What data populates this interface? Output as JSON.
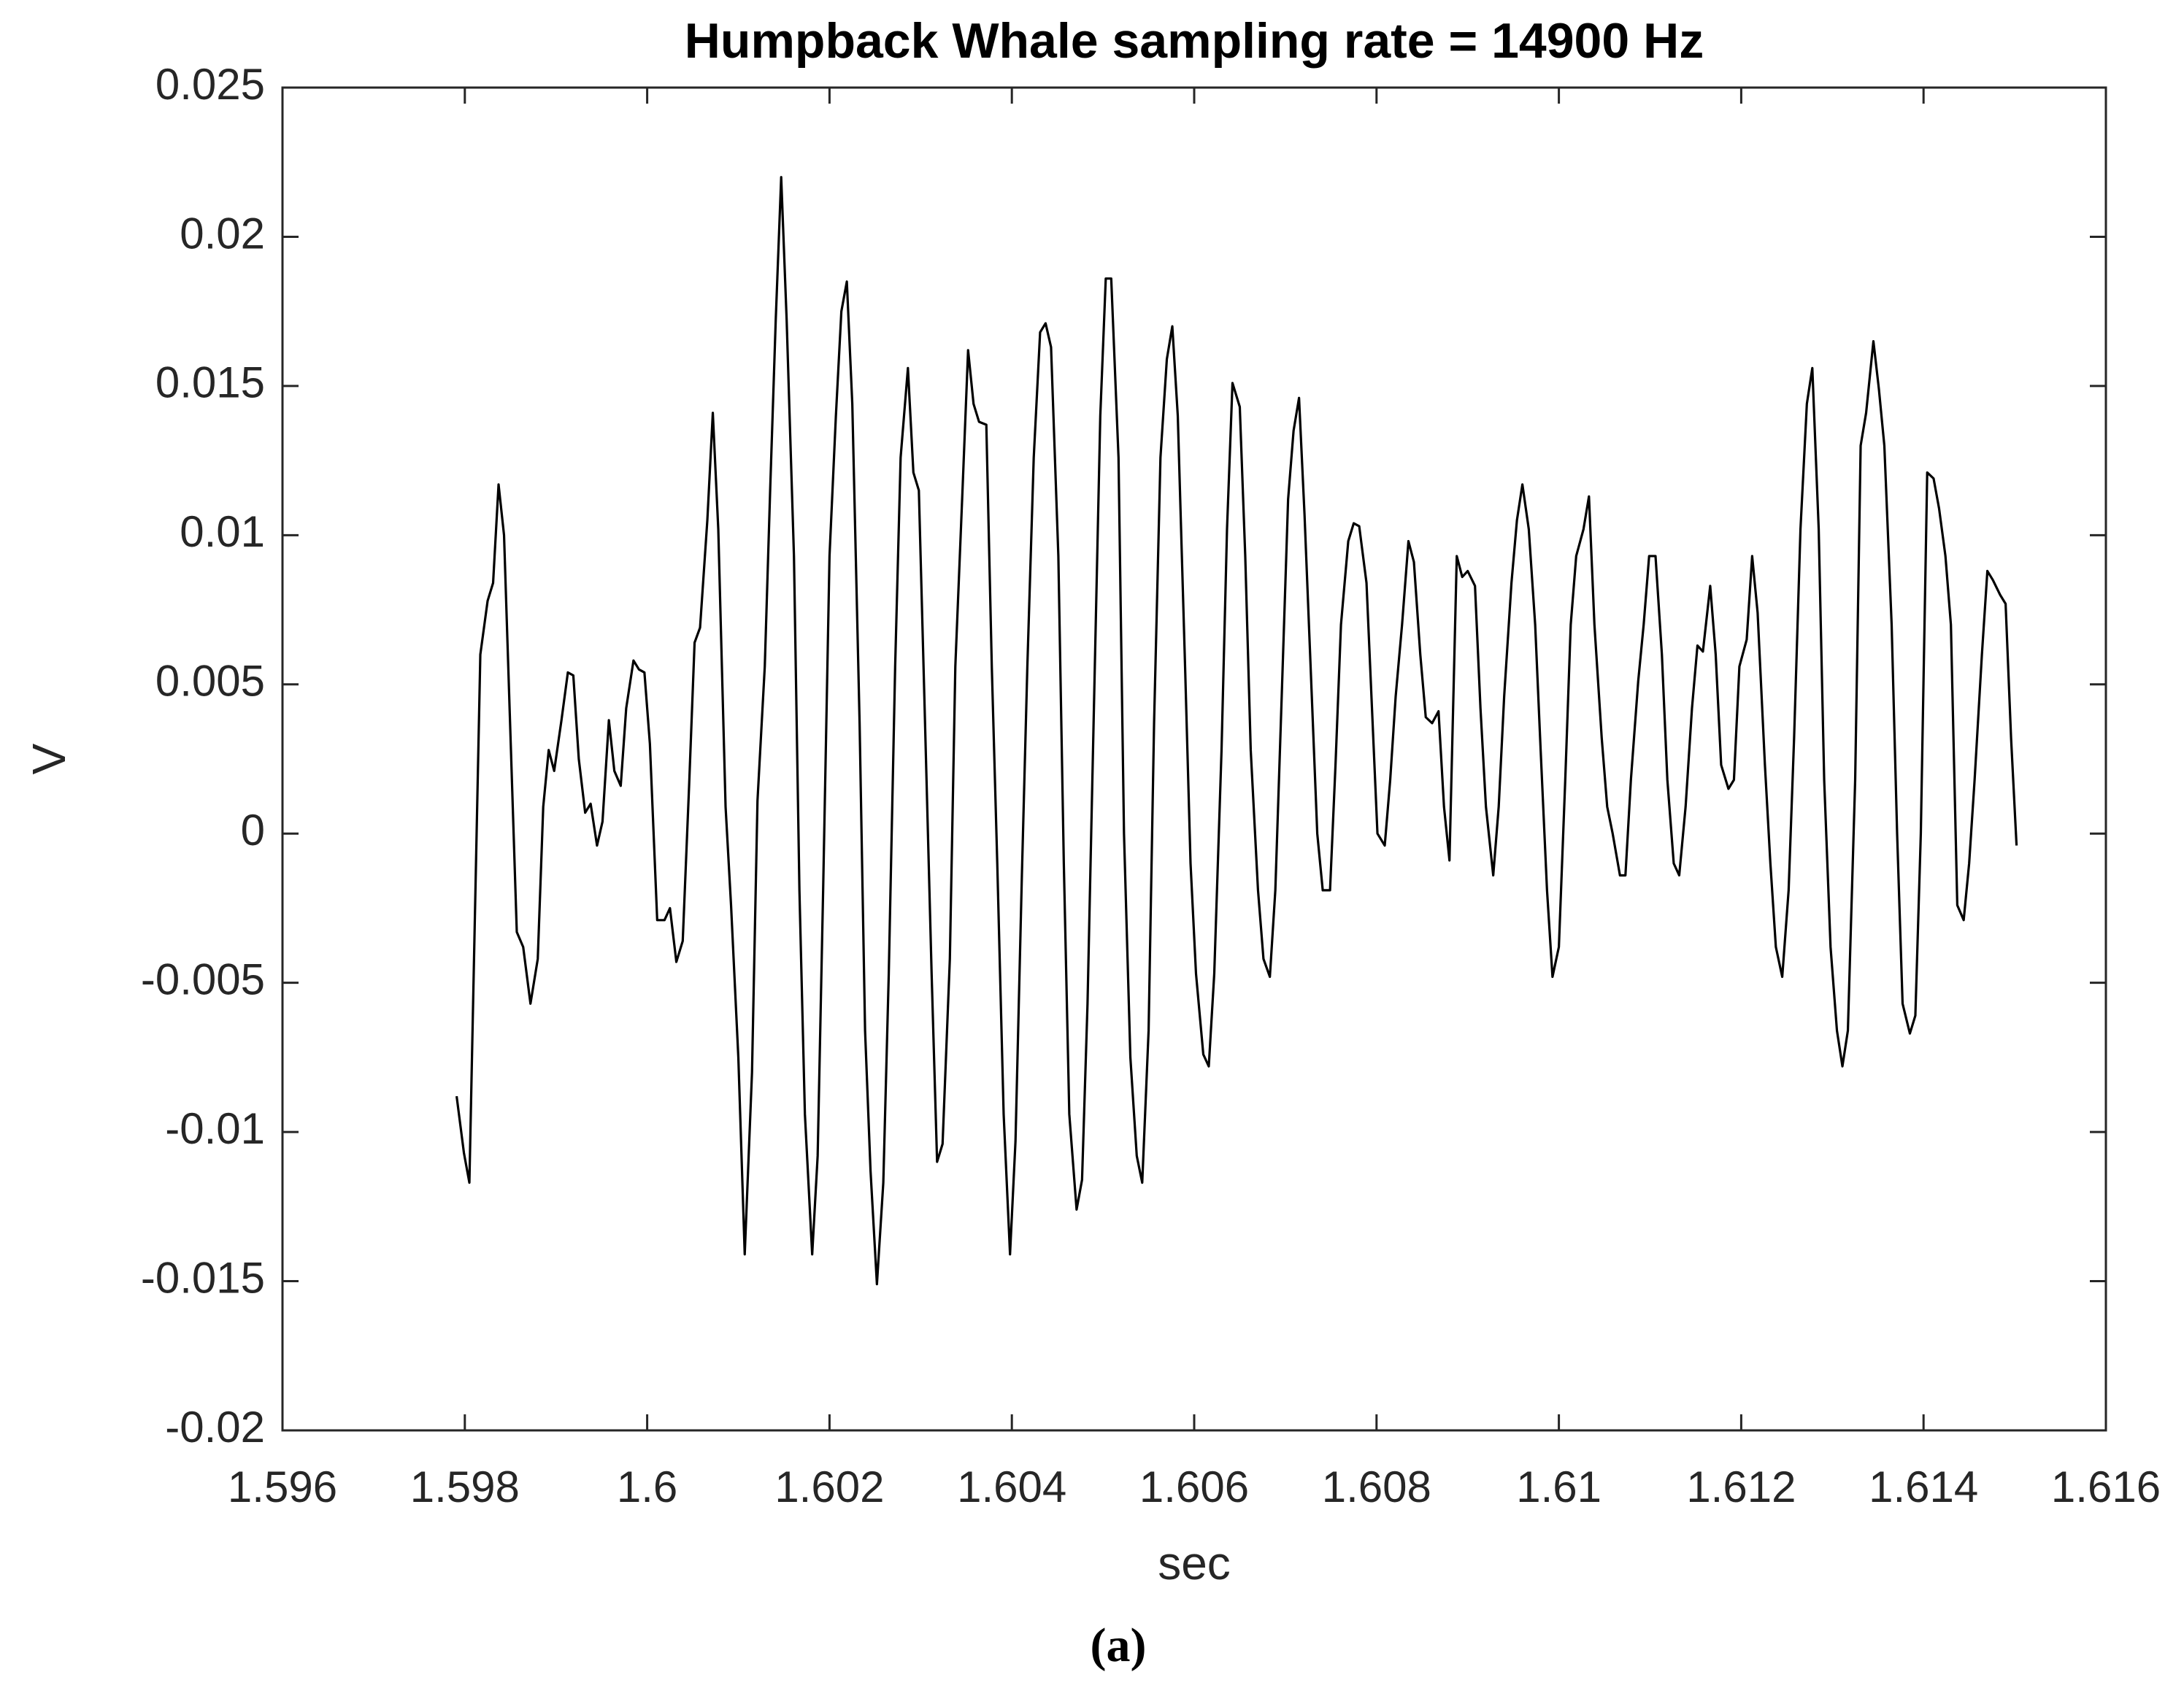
{
  "chart_data": {
    "type": "line",
    "title": "Humpback Whale sampling rate = 14900 Hz",
    "x_label": "sec",
    "y_label": "V",
    "caption": "(a)",
    "xlim": [
      1.596,
      1.616
    ],
    "xticks": [
      1.596,
      1.598,
      1.6,
      1.602,
      1.604,
      1.606,
      1.608,
      1.61,
      1.612,
      1.614,
      1.616
    ],
    "ylim": [
      -0.02,
      0.025
    ],
    "yticks": [
      -0.02,
      -0.015,
      -0.01,
      -0.005,
      0,
      0.005,
      0.01,
      0.015,
      0.02,
      0.025
    ],
    "grid": false,
    "series": [
      {
        "color": "#000000",
        "x": [
          1.59791,
          1.59799,
          1.59805,
          1.59817,
          1.59825,
          1.59831,
          1.59837,
          1.59843,
          1.59857,
          1.59864,
          1.59872,
          1.5988,
          1.59886,
          1.59892,
          1.59898,
          1.59906,
          1.59913,
          1.59919,
          1.59925,
          1.59932,
          1.59938,
          1.59945,
          1.59951,
          1.59958,
          1.59964,
          1.59971,
          1.59977,
          1.59985,
          1.59991,
          1.59997,
          1.60003,
          1.60011,
          1.60019,
          1.60025,
          1.60032,
          1.60039,
          1.60046,
          1.60052,
          1.60058,
          1.60066,
          1.60072,
          1.60078,
          1.60086,
          1.60092,
          1.601,
          1.60107,
          1.60115,
          1.60121,
          1.60129,
          1.60135,
          1.60141,
          1.60147,
          1.60153,
          1.60161,
          1.60167,
          1.60173,
          1.60181,
          1.60187,
          1.60193,
          1.602,
          1.60207,
          1.60213,
          1.60219,
          1.60225,
          1.60233,
          1.60239,
          1.60245,
          1.60252,
          1.60259,
          1.60265,
          1.60272,
          1.60278,
          1.60286,
          1.60292,
          1.60298,
          1.60304,
          1.60312,
          1.60318,
          1.60324,
          1.60332,
          1.60338,
          1.60346,
          1.60352,
          1.60358,
          1.60364,
          1.60372,
          1.60378,
          1.60384,
          1.60391,
          1.60398,
          1.60404,
          1.60411,
          1.60417,
          1.60424,
          1.60431,
          1.60437,
          1.60443,
          1.60451,
          1.60457,
          1.60463,
          1.60471,
          1.60477,
          1.60483,
          1.60491,
          1.60497,
          1.60503,
          1.60509,
          1.60517,
          1.60523,
          1.6053,
          1.60537,
          1.60543,
          1.6055,
          1.60556,
          1.60563,
          1.6057,
          1.60576,
          1.60582,
          1.6059,
          1.60596,
          1.60602,
          1.6061,
          1.60616,
          1.60622,
          1.6063,
          1.60636,
          1.60642,
          1.6065,
          1.60656,
          1.60662,
          1.6067,
          1.60676,
          1.60683,
          1.60689,
          1.60696,
          1.60703,
          1.60709,
          1.60715,
          1.60721,
          1.60729,
          1.60735,
          1.60741,
          1.60749,
          1.60755,
          1.60761,
          1.60769,
          1.60775,
          1.60781,
          1.60789,
          1.60795,
          1.60801,
          1.60809,
          1.60815,
          1.60821,
          1.60828,
          1.60835,
          1.60841,
          1.60848,
          1.60854,
          1.60861,
          1.60868,
          1.60874,
          1.6088,
          1.60888,
          1.60894,
          1.609,
          1.60908,
          1.60914,
          1.6092,
          1.60928,
          1.60934,
          1.6094,
          1.60948,
          1.60954,
          1.6096,
          1.60967,
          1.60974,
          1.6098,
          1.60987,
          1.60993,
          1.61,
          1.61007,
          1.61013,
          1.61019,
          1.61027,
          1.61033,
          1.61039,
          1.61047,
          1.61053,
          1.61059,
          1.61067,
          1.61073,
          1.61079,
          1.61087,
          1.61093,
          1.61099,
          1.61106,
          1.61113,
          1.61119,
          1.61126,
          1.61132,
          1.61139,
          1.61146,
          1.61152,
          1.61158,
          1.61166,
          1.61172,
          1.61178,
          1.61186,
          1.61192,
          1.61198,
          1.61206,
          1.61212,
          1.61218,
          1.61226,
          1.61232,
          1.61238,
          1.61245,
          1.61252,
          1.61258,
          1.61265,
          1.61272,
          1.61278,
          1.61285,
          1.61291,
          1.61298,
          1.61305,
          1.61311,
          1.61317,
          1.61325,
          1.61331,
          1.61337,
          1.61345,
          1.61351,
          1.61357,
          1.61365,
          1.61371,
          1.61377,
          1.61385,
          1.61391,
          1.61397,
          1.61404,
          1.61411,
          1.61417,
          1.61424,
          1.6143,
          1.61437,
          1.61444,
          1.6145,
          1.61456,
          1.61464,
          1.6147,
          1.61476,
          1.61484,
          1.6149,
          1.61496,
          1.61502
        ],
        "values": [
          -0.0088,
          -0.0107,
          -0.0117,
          0.006,
          0.0078,
          0.0084,
          0.0117,
          0.01,
          -0.0033,
          -0.0038,
          -0.0057,
          -0.0042,
          0.0009,
          0.0028,
          0.0021,
          0.0038,
          0.0054,
          0.0053,
          0.0025,
          0.0007,
          0.001,
          -0.0004,
          0.0004,
          0.0038,
          0.0021,
          0.0016,
          0.0042,
          0.0058,
          0.0055,
          0.0054,
          0.003,
          -0.0029,
          -0.0029,
          -0.0025,
          -0.0043,
          -0.0036,
          0.0016,
          0.0064,
          0.0069,
          0.0105,
          0.0141,
          0.0102,
          0.0009,
          -0.0024,
          -0.0075,
          -0.0141,
          -0.008,
          0.0011,
          0.0056,
          0.0116,
          0.0172,
          0.022,
          0.0172,
          0.0093,
          -0.0019,
          -0.0094,
          -0.0141,
          -0.0108,
          -0.0019,
          0.0093,
          0.014,
          0.0175,
          0.0185,
          0.0144,
          0.0037,
          -0.0066,
          -0.0113,
          -0.0151,
          -0.0117,
          -0.0047,
          0.0056,
          0.0126,
          0.0156,
          0.0121,
          0.0115,
          0.0046,
          -0.0047,
          -0.011,
          -0.0104,
          -0.0042,
          0.0056,
          0.0116,
          0.0162,
          0.0144,
          0.0138,
          0.0137,
          0.0056,
          -0.001,
          -0.0094,
          -0.0141,
          -0.0103,
          -0.0014,
          0.0056,
          0.0126,
          0.0168,
          0.0171,
          0.0163,
          0.0093,
          -0.001,
          -0.0094,
          -0.0126,
          -0.0116,
          -0.0057,
          0.0056,
          0.014,
          0.0186,
          0.0186,
          0.0126,
          0,
          -0.0075,
          -0.0108,
          -0.0117,
          -0.0066,
          0.0037,
          0.0126,
          0.0159,
          0.017,
          0.014,
          0.0056,
          -0.001,
          -0.0047,
          -0.0074,
          -0.0078,
          -0.0047,
          0.0028,
          0.0102,
          0.0151,
          0.0143,
          0.0093,
          0.0028,
          -0.0019,
          -0.0042,
          -0.0048,
          -0.0019,
          0.0046,
          0.0112,
          0.0135,
          0.0146,
          0.0107,
          0.0046,
          0,
          -0.0019,
          -0.0019,
          0.0023,
          0.007,
          0.0098,
          0.0104,
          0.0103,
          0.0084,
          0.0042,
          0,
          -0.0004,
          0.0018,
          0.0046,
          0.007,
          0.0098,
          0.0091,
          0.006,
          0.0039,
          0.0037,
          0.0041,
          0.0009,
          -0.0009,
          0.0093,
          0.0086,
          0.0088,
          0.0083,
          0.0042,
          0.0009,
          -0.0014,
          0.0009,
          0.0046,
          0.0084,
          0.0105,
          0.0117,
          0.0102,
          0.007,
          0.0028,
          -0.0019,
          -0.0048,
          -0.0038,
          0.0018,
          0.007,
          0.0093,
          0.0102,
          0.0113,
          0.007,
          0.0032,
          0.0009,
          0,
          -0.0014,
          -0.0014,
          0.0018,
          0.0051,
          0.007,
          0.0093,
          0.0093,
          0.006,
          0.0018,
          -0.001,
          -0.0014,
          0.0009,
          0.0042,
          0.0063,
          0.0061,
          0.0083,
          0.006,
          0.0023,
          0.0015,
          0.0018,
          0.0056,
          0.0065,
          0.0093,
          0.0074,
          0.0023,
          -0.001,
          -0.0038,
          -0.0048,
          -0.0019,
          0.0032,
          0.0102,
          0.0144,
          0.0156,
          0.0102,
          0.0018,
          -0.0038,
          -0.0066,
          -0.0078,
          -0.0066,
          0.0018,
          0.013,
          0.0141,
          0.0165,
          0.0149,
          0.013,
          0.007,
          0,
          -0.0057,
          -0.0067,
          -0.0061,
          0,
          0.0121,
          0.0119,
          0.0109,
          0.0093,
          0.007,
          -0.0024,
          -0.0029,
          -0.001,
          0.0018,
          0.006,
          0.0088,
          0.0085,
          0.008,
          0.0077,
          0.0032,
          -0.0004
        ]
      }
    ]
  }
}
